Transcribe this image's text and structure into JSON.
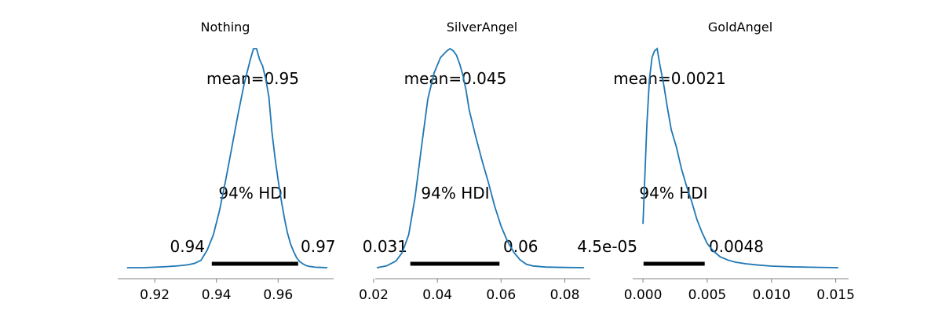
{
  "chart_data": [
    {
      "type": "density",
      "title": "Nothing",
      "xlim": [
        0.908,
        0.978
      ],
      "xticks": [
        0.92,
        0.94,
        0.96
      ],
      "xtick_labels": [
        "0.92",
        "0.94",
        "0.96"
      ],
      "mean_label": "mean=0.95",
      "hdi_label": "94% HDI",
      "hdi": [
        0.9385,
        0.9665
      ],
      "hdi_low_label": "0.94",
      "hdi_high_label": "0.97",
      "color": "#1f77b4",
      "x": [
        0.911,
        0.916,
        0.92,
        0.924,
        0.928,
        0.931,
        0.933,
        0.935,
        0.937,
        0.939,
        0.941,
        0.943,
        0.945,
        0.947,
        0.949,
        0.951,
        0.952,
        0.953,
        0.954,
        0.955,
        0.956,
        0.957,
        0.958,
        0.959,
        0.96,
        0.961,
        0.962,
        0.963,
        0.964,
        0.965,
        0.966,
        0.967,
        0.968,
        0.969,
        0.97,
        0.972,
        0.974,
        0.976
      ],
      "density": [
        0.0,
        0.0,
        0.002,
        0.005,
        0.009,
        0.014,
        0.02,
        0.034,
        0.08,
        0.15,
        0.26,
        0.4,
        0.55,
        0.7,
        0.84,
        0.95,
        1.0,
        1.0,
        0.95,
        0.92,
        0.86,
        0.78,
        0.62,
        0.5,
        0.4,
        0.31,
        0.23,
        0.16,
        0.11,
        0.075,
        0.045,
        0.028,
        0.018,
        0.01,
        0.006,
        0.002,
        0.001,
        0.0
      ]
    },
    {
      "type": "density",
      "title": "SilverAngel",
      "xlim": [
        0.0205,
        0.088
      ],
      "xticks": [
        0.02,
        0.04,
        0.06,
        0.08
      ],
      "xtick_labels": [
        "0.02",
        "0.04",
        "0.06",
        "0.08"
      ],
      "mean_label": "mean=0.045",
      "hdi_label": "94% HDI",
      "hdi": [
        0.0315,
        0.0595
      ],
      "hdi_low_label": "0.031",
      "hdi_high_label": "0.06",
      "color": "#1f77b4",
      "x": [
        0.021,
        0.024,
        0.027,
        0.029,
        0.031,
        0.033,
        0.035,
        0.037,
        0.039,
        0.041,
        0.043,
        0.044,
        0.045,
        0.046,
        0.047,
        0.048,
        0.049,
        0.05,
        0.052,
        0.054,
        0.056,
        0.058,
        0.06,
        0.062,
        0.064,
        0.066,
        0.068,
        0.07,
        0.074,
        0.08,
        0.086
      ],
      "density": [
        0.0,
        0.008,
        0.03,
        0.07,
        0.15,
        0.32,
        0.55,
        0.77,
        0.89,
        0.96,
        0.99,
        1.0,
        0.99,
        0.97,
        0.93,
        0.88,
        0.81,
        0.72,
        0.6,
        0.49,
        0.39,
        0.28,
        0.19,
        0.12,
        0.07,
        0.035,
        0.015,
        0.008,
        0.003,
        0.001,
        0.0
      ]
    },
    {
      "type": "density",
      "title": "GoldAngel",
      "xlim": [
        -0.0008,
        0.016
      ],
      "xticks": [
        0.0,
        0.005,
        0.01,
        0.015
      ],
      "xtick_labels": [
        "0.000",
        "0.005",
        "0.010",
        "0.015"
      ],
      "mean_label": "mean=0.0021",
      "hdi_label": "94% HDI",
      "hdi": [
        4.5e-05,
        0.0048
      ],
      "hdi_low_label": "4.5e-05",
      "hdi_high_label": "0.0048",
      "color": "#1f77b4",
      "x": [
        0.0,
        0.0003,
        0.0005,
        0.0007,
        0.0009,
        0.0011,
        0.0013,
        0.0016,
        0.0019,
        0.0022,
        0.0026,
        0.003,
        0.0034,
        0.0038,
        0.0042,
        0.0046,
        0.005,
        0.0055,
        0.006,
        0.0066,
        0.0072,
        0.008,
        0.009,
        0.01,
        0.0115,
        0.013,
        0.0152
      ],
      "density": [
        0.2,
        0.65,
        0.86,
        0.96,
        0.99,
        1.0,
        0.93,
        0.84,
        0.73,
        0.63,
        0.55,
        0.45,
        0.37,
        0.3,
        0.22,
        0.16,
        0.11,
        0.075,
        0.05,
        0.035,
        0.025,
        0.018,
        0.012,
        0.007,
        0.004,
        0.002,
        0.0
      ]
    }
  ]
}
